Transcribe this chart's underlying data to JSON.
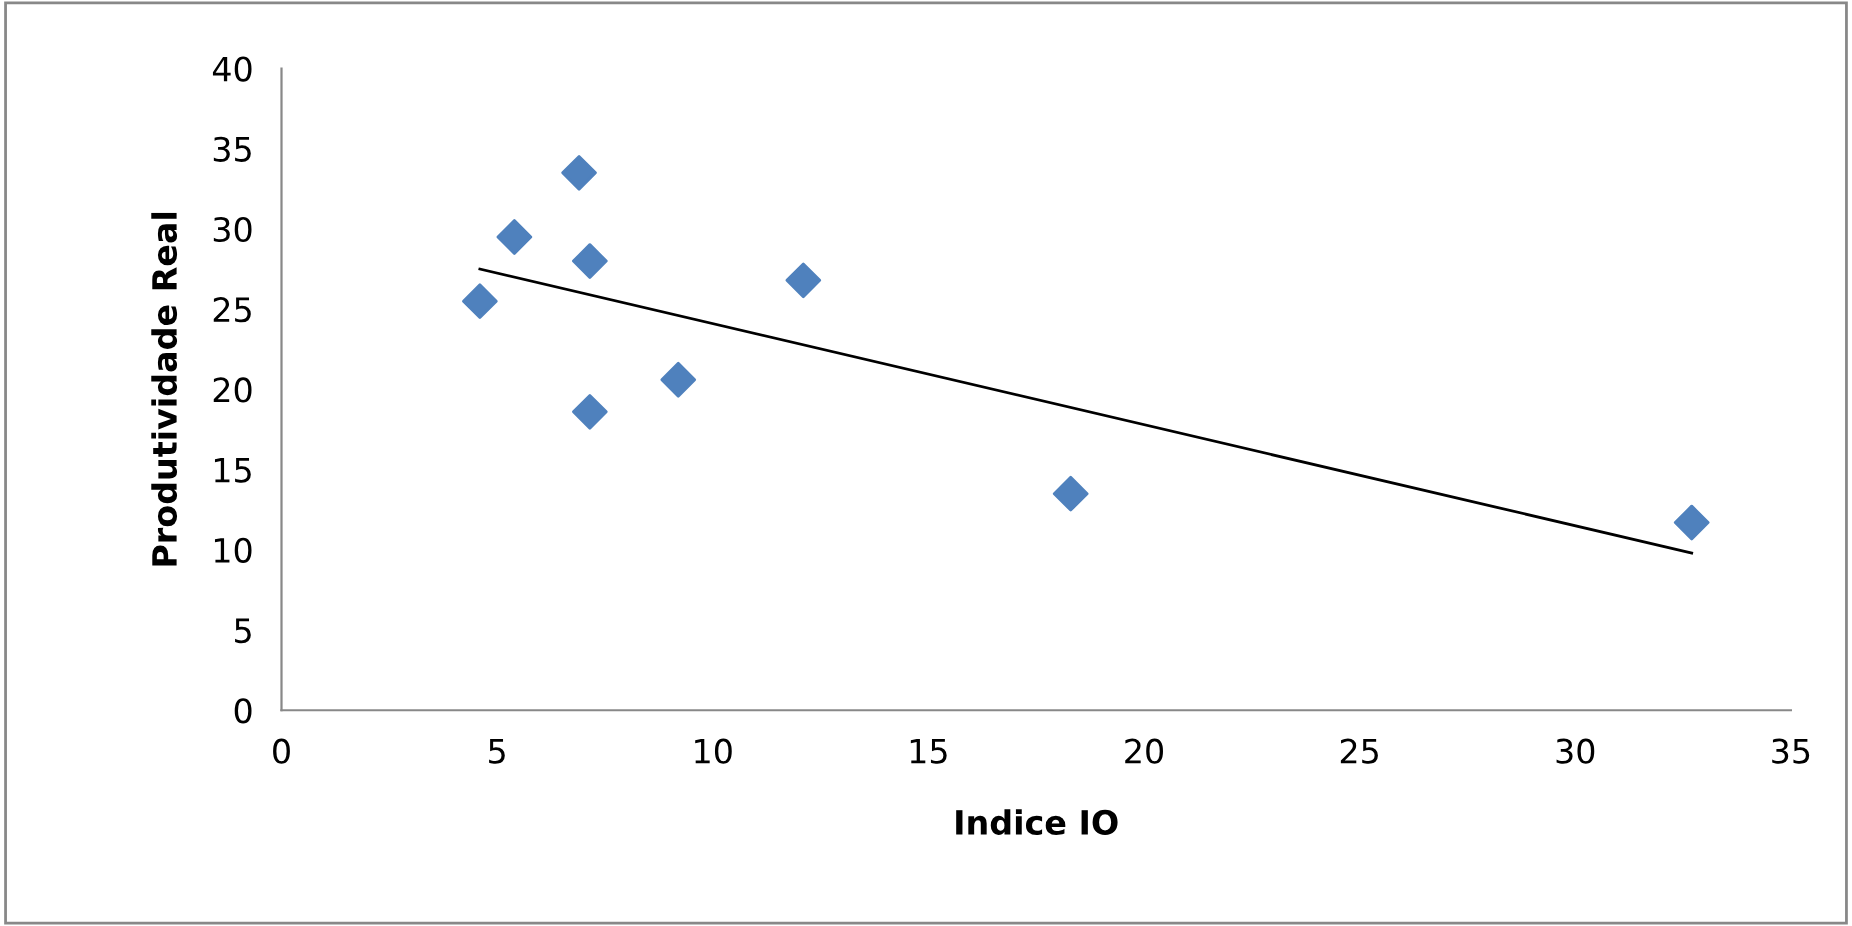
{
  "chart_data": {
    "type": "scatter",
    "xlabel": "Indice IO",
    "ylabel": "Produtividade Real",
    "xlim": [
      0,
      35
    ],
    "xticks": [
      0,
      5,
      10,
      15,
      20,
      25,
      30,
      35
    ],
    "ylim": [
      0,
      40
    ],
    "yticks": [
      0,
      5,
      10,
      15,
      20,
      25,
      30,
      35,
      40
    ],
    "grid": false,
    "legend": false,
    "marker": "diamond",
    "series": [
      {
        "color": "#4f81bd",
        "x": [
          4.6,
          5.4,
          6.9,
          7.15,
          7.15,
          9.2,
          12.1,
          18.3,
          32.7
        ],
        "values": [
          25.5,
          29.5,
          33.5,
          28.0,
          18.6,
          20.6,
          26.8,
          13.5,
          11.7
        ]
      },
      {
        "type": "line",
        "color": "#000000",
        "marker": "none",
        "x": [
          4.6,
          32.7
        ],
        "values": [
          27.5,
          9.8
        ]
      }
    ]
  }
}
